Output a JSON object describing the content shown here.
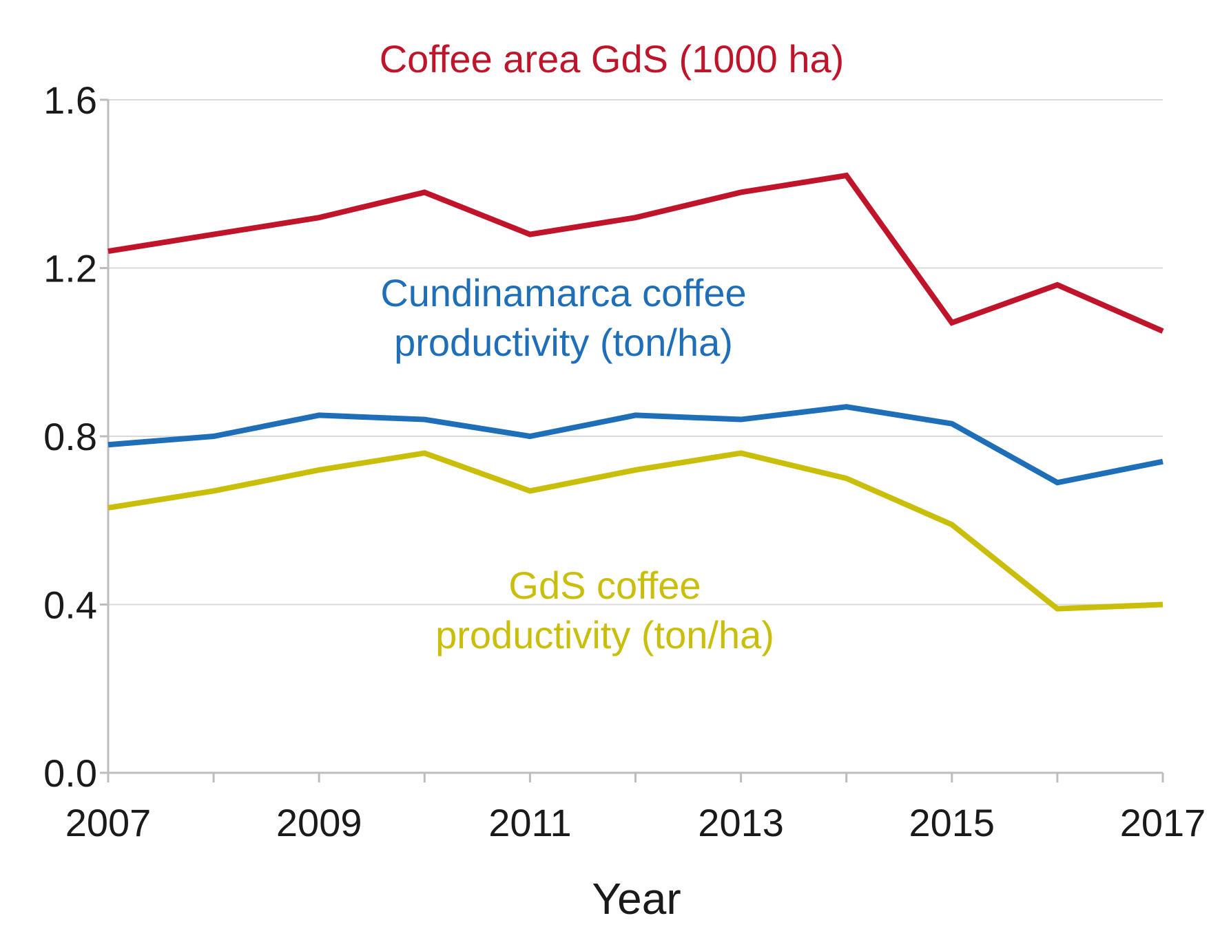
{
  "chart_data": {
    "type": "line",
    "title": "",
    "xlabel": "Year",
    "ylabel": "",
    "x": [
      2007,
      2008,
      2009,
      2010,
      2011,
      2012,
      2013,
      2014,
      2015,
      2016,
      2017
    ],
    "xlim": [
      2007,
      2017
    ],
    "ylim": [
      0.0,
      1.6
    ],
    "x_tick_labels": [
      "2007",
      "2009",
      "2011",
      "2013",
      "2015",
      "2017"
    ],
    "y_tick_labels": [
      "0.0",
      "0.4",
      "0.8",
      "1.2",
      "1.6"
    ],
    "grid": true,
    "series": [
      {
        "name": "Coffee area GdS (1000 ha)",
        "label_lines": [
          "Coffee area GdS (1000 ha)"
        ],
        "color": "#c0142a",
        "values": [
          1.24,
          1.28,
          1.32,
          1.38,
          1.28,
          1.32,
          1.38,
          1.42,
          1.07,
          1.16,
          1.05
        ]
      },
      {
        "name": "Cundinamarca coffee productivity (ton/ha)",
        "label_lines": [
          "Cundinamarca coffee",
          "productivity (ton/ha)"
        ],
        "color": "#1f6eb8",
        "values": [
          0.78,
          0.8,
          0.85,
          0.84,
          0.8,
          0.85,
          0.84,
          0.87,
          0.83,
          0.69,
          0.74
        ]
      },
      {
        "name": "GdS coffee productivity (ton/ha)",
        "label_lines": [
          "GdS coffee",
          "productivity (ton/ha)"
        ],
        "color": "#c9be0a",
        "values": [
          0.63,
          0.67,
          0.72,
          0.76,
          0.67,
          0.72,
          0.76,
          0.7,
          0.59,
          0.39,
          0.4
        ]
      }
    ]
  }
}
